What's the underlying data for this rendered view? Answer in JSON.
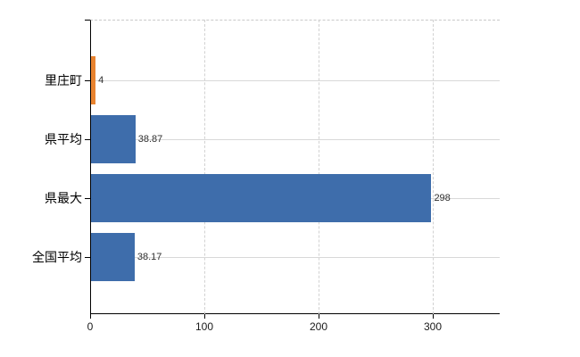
{
  "chart_data": {
    "type": "bar",
    "orientation": "horizontal",
    "title": "",
    "xlabel": "",
    "ylabel": "",
    "categories": [
      "里庄町",
      "県平均",
      "県最大",
      "全国平均"
    ],
    "values": [
      4,
      38.87,
      298,
      38.17
    ],
    "value_labels": [
      "4",
      "38.87",
      "298",
      "38.17"
    ],
    "bar_colors": [
      "#E8832F",
      "#3E6DAB",
      "#3E6DAB",
      "#3E6DAB"
    ],
    "x_ticks": [
      0,
      100,
      200,
      300
    ],
    "xlim": [
      0,
      358.6
    ],
    "grid": true,
    "legend": false
  },
  "colors": {
    "bar_blue": "#3E6DAB",
    "bar_orange": "#E8832F",
    "grid_line": "#d8d8d8",
    "axis_line": "#000000",
    "background": "#ffffff"
  }
}
